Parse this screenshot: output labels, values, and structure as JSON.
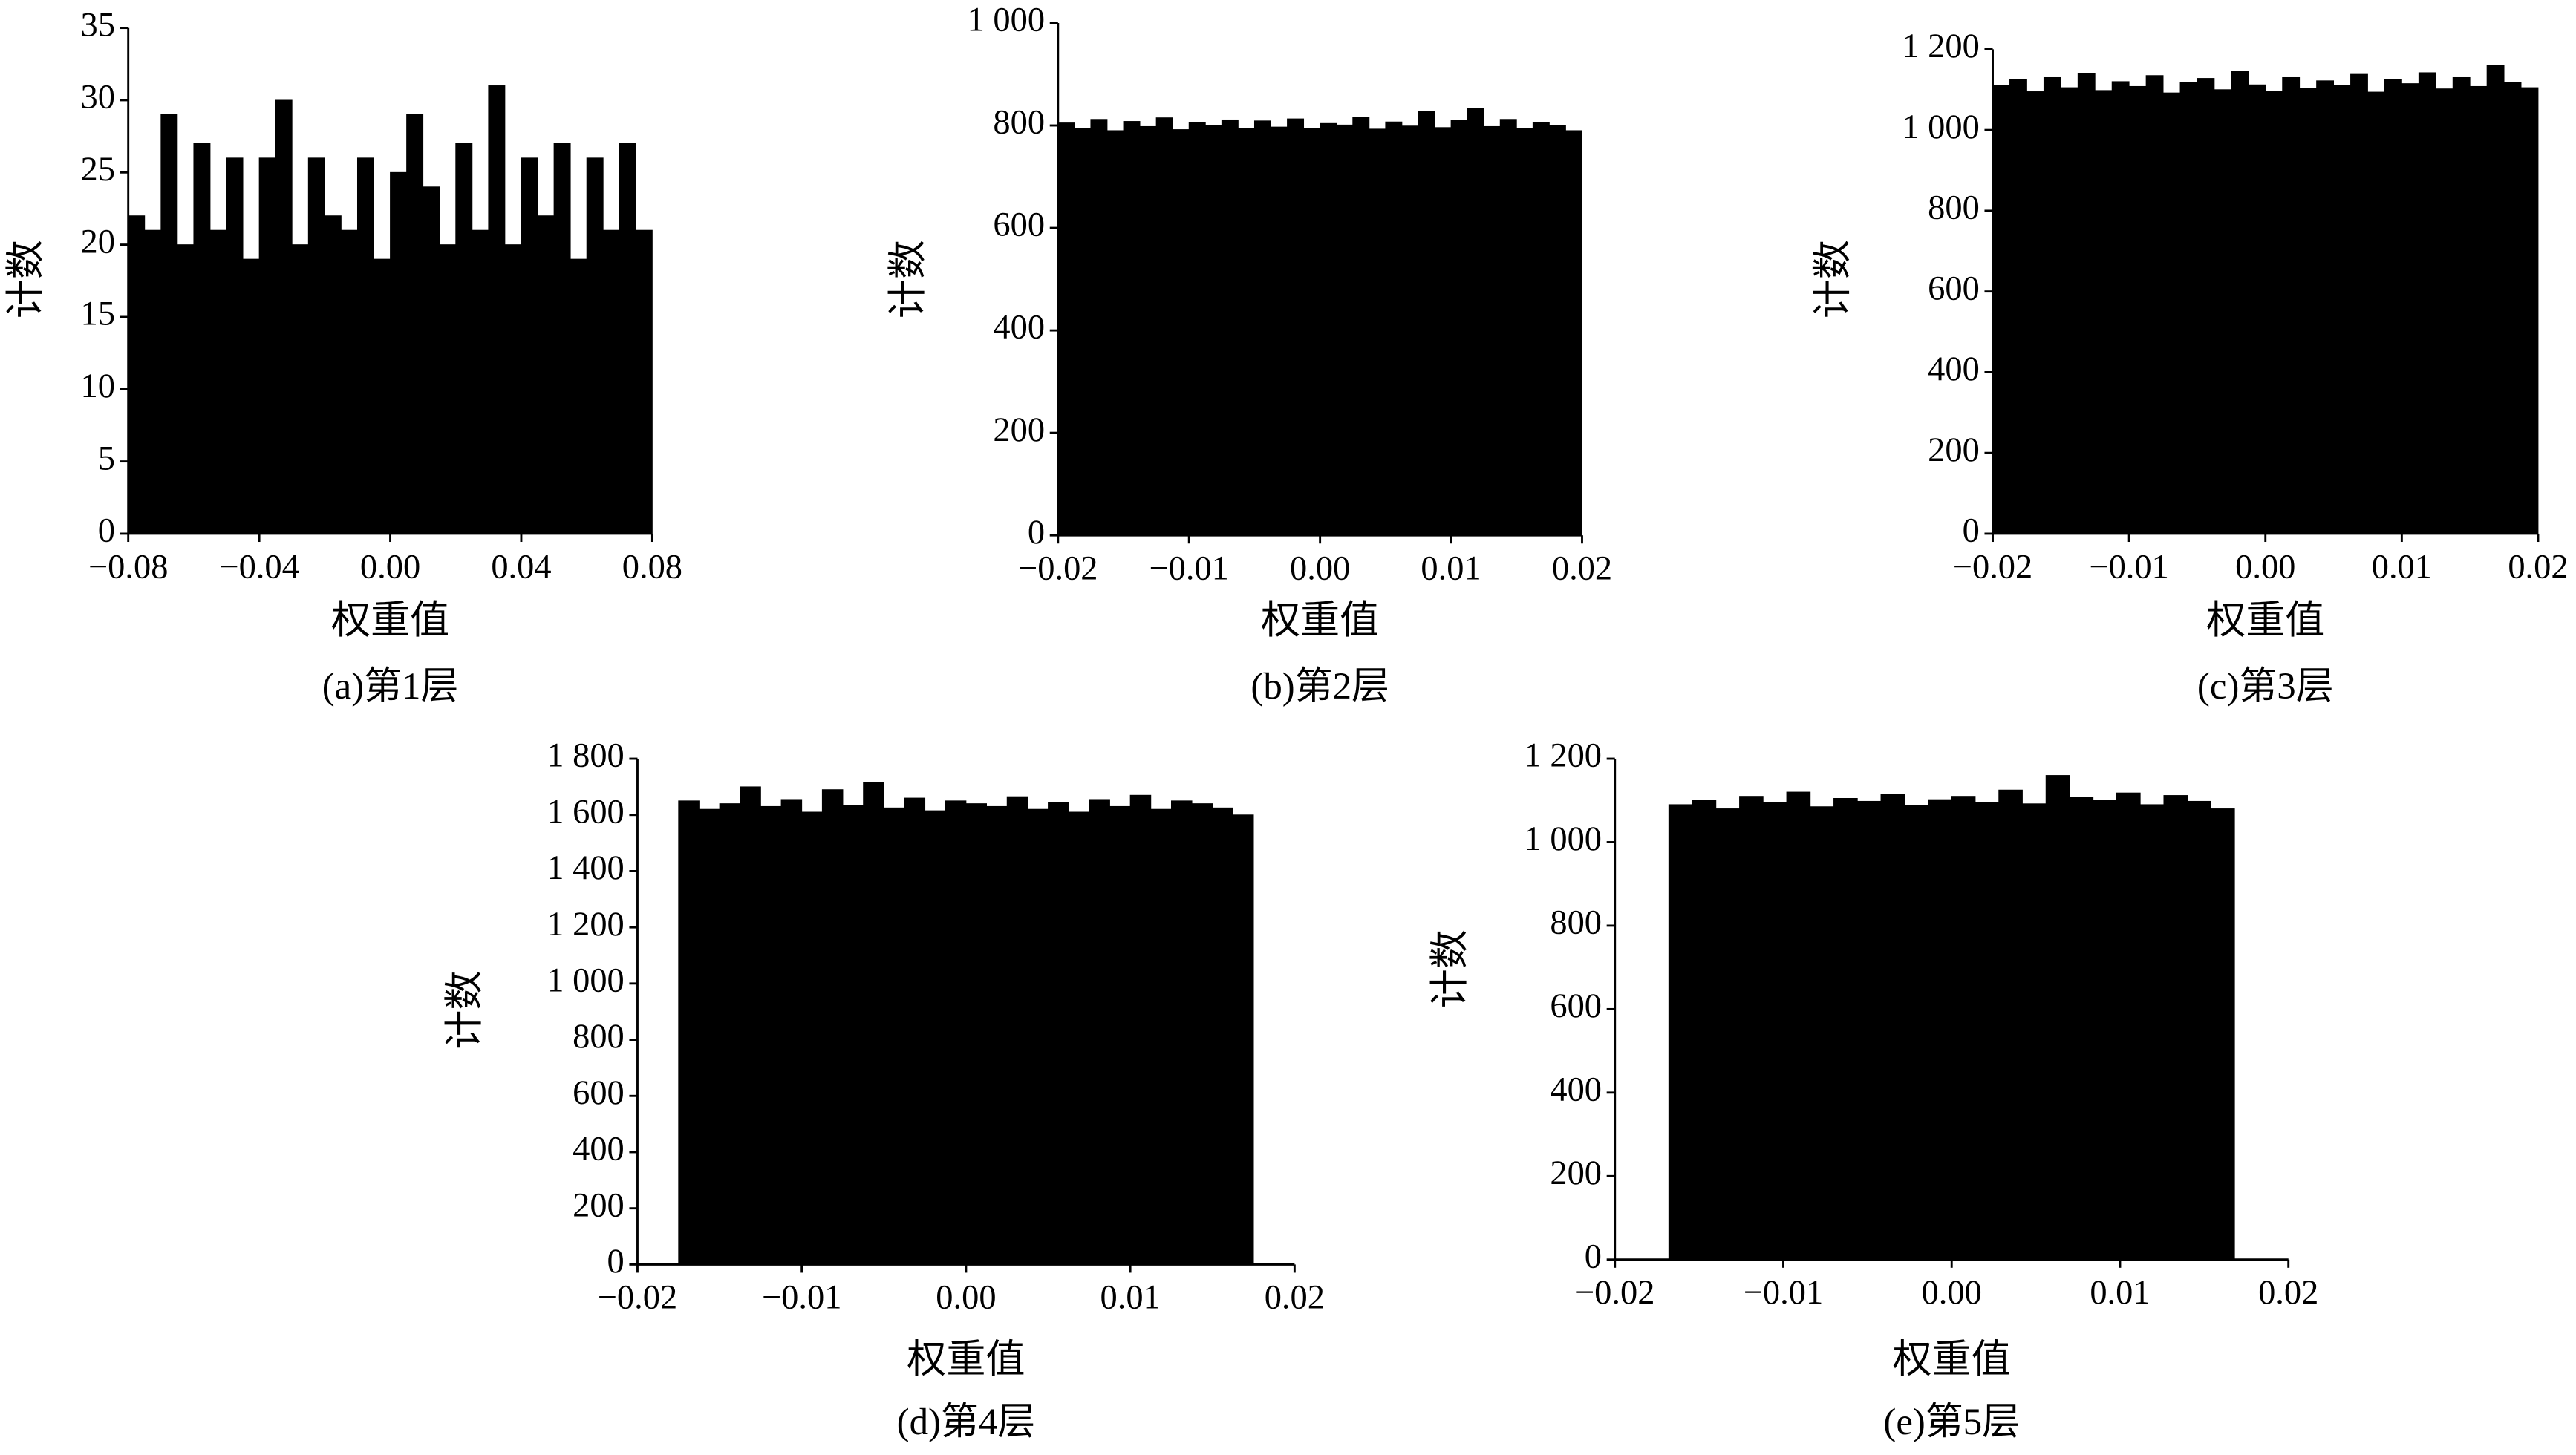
{
  "chart_data": [
    {
      "type": "histogram",
      "caption": "(a)第1层",
      "xlabel": "权重值",
      "ylabel": "计数",
      "color": "#000000",
      "bins": [
        -0.08,
        -0.075,
        -0.07,
        -0.065,
        -0.06,
        -0.055,
        -0.05,
        -0.045,
        -0.04,
        -0.035,
        -0.03,
        -0.025,
        -0.02,
        -0.015,
        -0.01,
        -0.005,
        0,
        0.005,
        0.01,
        0.015,
        0.02,
        0.025,
        0.03,
        0.035,
        0.04,
        0.045,
        0.05,
        0.055,
        0.06,
        0.065,
        0.07,
        0.075,
        0.08
      ],
      "values": [
        22,
        21,
        29,
        20,
        27,
        21,
        26,
        19,
        26,
        30,
        20,
        26,
        22,
        21,
        26,
        19,
        25,
        29,
        24,
        20,
        27,
        21,
        31,
        20,
        26,
        22,
        27,
        19,
        26,
        21,
        27,
        21
      ],
      "xlim": [
        -0.08,
        0.08
      ],
      "xticks": [
        {
          "value": -0.08,
          "label": "−0.08"
        },
        {
          "value": -0.04,
          "label": "−0.04"
        },
        {
          "value": 0,
          "label": "0.00"
        },
        0.04,
        0.08
      ],
      "ylim": [
        0,
        35
      ],
      "yticks": [
        0,
        5,
        10,
        15,
        20,
        25,
        30,
        35
      ]
    },
    {
      "type": "histogram",
      "caption": "(b)第2层",
      "xlabel": "权重值",
      "ylabel": "计数",
      "color": "#000000",
      "bins": [
        -0.02,
        -0.01875,
        -0.0175,
        -0.01625,
        -0.015,
        -0.01375,
        -0.0125,
        -0.01125,
        -0.01,
        -0.00875,
        -0.0075,
        -0.00625,
        -0.005,
        -0.00375,
        -0.0025,
        -0.00125,
        0,
        0.00125,
        0.0025,
        0.00375,
        0.005,
        0.00625,
        0.0075,
        0.00875,
        0.01,
        0.01125,
        0.0125,
        0.01375,
        0.015,
        0.01625,
        0.0175,
        0.01875,
        0.02
      ],
      "values": [
        805,
        795,
        812,
        790,
        808,
        798,
        815,
        792,
        806,
        800,
        811,
        794,
        809,
        797,
        813,
        795,
        804,
        801,
        816,
        793,
        807,
        799,
        827,
        796,
        810,
        833,
        798,
        812,
        794,
        806,
        800,
        790
      ],
      "xlim": [
        -0.02,
        0.02
      ],
      "xticks": [
        {
          "value": -0.02,
          "label": "−0.02"
        },
        {
          "value": -0.01,
          "label": "−0.01"
        },
        {
          "value": 0,
          "label": "0.00"
        },
        0.01,
        0.02
      ],
      "ylim": [
        0,
        1000
      ],
      "yticks": [
        0,
        200,
        400,
        600,
        800,
        {
          "value": 1000,
          "label": "1 000"
        }
      ]
    },
    {
      "type": "histogram",
      "caption": "(c)第3层",
      "xlabel": "权重值",
      "ylabel": "计数",
      "color": "#000000",
      "bins": [
        -0.02,
        -0.01875,
        -0.0175,
        -0.01625,
        -0.015,
        -0.01375,
        -0.0125,
        -0.01125,
        -0.01,
        -0.00875,
        -0.0075,
        -0.00625,
        -0.005,
        -0.00375,
        -0.0025,
        -0.00125,
        0,
        0.00125,
        0.0025,
        0.00375,
        0.005,
        0.00625,
        0.0075,
        0.00875,
        0.01,
        0.01125,
        0.0125,
        0.01375,
        0.015,
        0.01625,
        0.0175,
        0.01875,
        0.02
      ],
      "values": [
        1110,
        1125,
        1095,
        1130,
        1105,
        1140,
        1098,
        1120,
        1108,
        1135,
        1092,
        1118,
        1128,
        1100,
        1145,
        1112,
        1096,
        1130,
        1104,
        1122,
        1110,
        1138,
        1094,
        1126,
        1115,
        1142,
        1102,
        1130,
        1108,
        1160,
        1118,
        1105
      ],
      "xlim": [
        -0.02,
        0.02
      ],
      "xticks": [
        {
          "value": -0.02,
          "label": "−0.02"
        },
        {
          "value": -0.01,
          "label": "−0.01"
        },
        {
          "value": 0,
          "label": "0.00"
        },
        0.01,
        0.02
      ],
      "ylim": [
        0,
        1200
      ],
      "yticks": [
        0,
        200,
        400,
        600,
        800,
        {
          "value": 1000,
          "label": "1 000"
        },
        {
          "value": 1200,
          "label": "1 200"
        }
      ]
    },
    {
      "type": "histogram",
      "caption": "(d)第4层",
      "xlabel": "权重值",
      "ylabel": "计数",
      "color": "#000000",
      "bins": [
        -0.0175,
        -0.01625,
        -0.015,
        -0.01375,
        -0.0125,
        -0.01125,
        -0.01,
        -0.00875,
        -0.0075,
        -0.00625,
        -0.005,
        -0.00375,
        -0.0025,
        -0.00125,
        0,
        0.00125,
        0.0025,
        0.00375,
        0.005,
        0.00625,
        0.0075,
        0.00875,
        0.01,
        0.01125,
        0.0125,
        0.01375,
        0.015,
        0.01625,
        0.0175
      ],
      "values": [
        1650,
        1620,
        1640,
        1700,
        1630,
        1655,
        1610,
        1690,
        1635,
        1715,
        1625,
        1660,
        1615,
        1650,
        1640,
        1630,
        1665,
        1620,
        1645,
        1610,
        1655,
        1630,
        1670,
        1620,
        1650,
        1640,
        1625,
        1600
      ],
      "xlim": [
        -0.02,
        0.02
      ],
      "xticks": [
        {
          "value": -0.02,
          "label": "−0.02"
        },
        {
          "value": -0.01,
          "label": "−0.01"
        },
        {
          "value": 0,
          "label": "0.00"
        },
        0.01,
        0.02
      ],
      "ylim": [
        0,
        1800
      ],
      "yticks": [
        0,
        200,
        400,
        600,
        800,
        {
          "value": 1000,
          "label": "1 000"
        },
        {
          "value": 1200,
          "label": "1 200"
        },
        {
          "value": 1400,
          "label": "1 400"
        },
        {
          "value": 1600,
          "label": "1 600"
        },
        {
          "value": 1800,
          "label": "1 800"
        }
      ]
    },
    {
      "type": "histogram",
      "caption": "(e)第5层",
      "xlabel": "权重值",
      "ylabel": "计数",
      "color": "#000000",
      "bins": [
        -0.0168,
        -0.0154,
        -0.014,
        -0.0126,
        -0.0112,
        -0.0098,
        -0.0084,
        -0.007,
        -0.0056,
        -0.0042,
        -0.0028,
        -0.0014,
        0,
        0.0014,
        0.0028,
        0.0042,
        0.0056,
        0.007,
        0.0084,
        0.0098,
        0.0112,
        0.0126,
        0.014,
        0.0154,
        0.0168
      ],
      "values": [
        1090,
        1100,
        1080,
        1110,
        1095,
        1120,
        1085,
        1105,
        1098,
        1115,
        1088,
        1102,
        1110,
        1096,
        1125,
        1092,
        1160,
        1108,
        1100,
        1118,
        1090,
        1112,
        1098,
        1080
      ],
      "xlim": [
        -0.02,
        0.02
      ],
      "xticks": [
        {
          "value": -0.02,
          "label": "−0.02"
        },
        {
          "value": -0.01,
          "label": "−0.01"
        },
        {
          "value": 0,
          "label": "0.00"
        },
        0.01,
        0.02
      ],
      "ylim": [
        0,
        1200
      ],
      "yticks": [
        0,
        200,
        400,
        600,
        800,
        {
          "value": 1000,
          "label": "1 000"
        },
        {
          "value": 1200,
          "label": "1 200"
        }
      ]
    }
  ]
}
